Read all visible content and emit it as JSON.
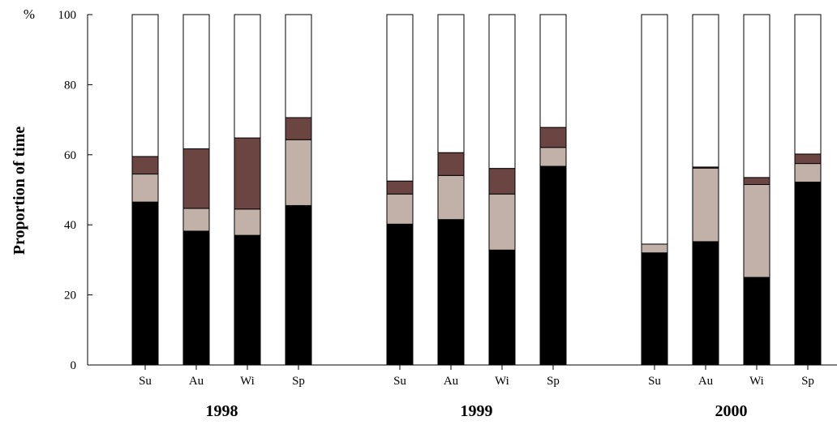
{
  "chart_data": {
    "type": "bar",
    "stacked": true,
    "ylabel": "Proportion of time",
    "y_unit": "%",
    "ylim": [
      0,
      100
    ],
    "yticks": [
      0,
      20,
      40,
      60,
      80,
      100
    ],
    "grid": false,
    "series_colors": [
      "#000000",
      "#c2b1a8",
      "#6b4541",
      "#ffffff"
    ],
    "groups": [
      {
        "label": "1998",
        "categories": [
          "Su",
          "Au",
          "Wi",
          "Sp"
        ],
        "stacks": [
          [
            46.5,
            8.0,
            5.0,
            40.5
          ],
          [
            38.2,
            6.5,
            17.0,
            38.3
          ],
          [
            37.0,
            7.5,
            20.3,
            35.2
          ],
          [
            45.5,
            18.8,
            6.3,
            29.4
          ]
        ]
      },
      {
        "label": "1999",
        "categories": [
          "Su",
          "Au",
          "Wi",
          "Sp"
        ],
        "stacks": [
          [
            40.2,
            8.6,
            3.7,
            47.5
          ],
          [
            41.5,
            12.6,
            6.5,
            39.4
          ],
          [
            32.8,
            16.0,
            7.3,
            43.9
          ],
          [
            56.7,
            5.4,
            5.7,
            32.2
          ]
        ]
      },
      {
        "label": "2000",
        "categories": [
          "Su",
          "Au",
          "Wi",
          "Sp"
        ],
        "stacks": [
          [
            32.0,
            2.5,
            0.0,
            65.5
          ],
          [
            35.2,
            21.0,
            0.3,
            43.5
          ],
          [
            25.0,
            26.5,
            2.0,
            46.5
          ],
          [
            52.2,
            5.3,
            2.7,
            39.8
          ]
        ]
      }
    ]
  }
}
